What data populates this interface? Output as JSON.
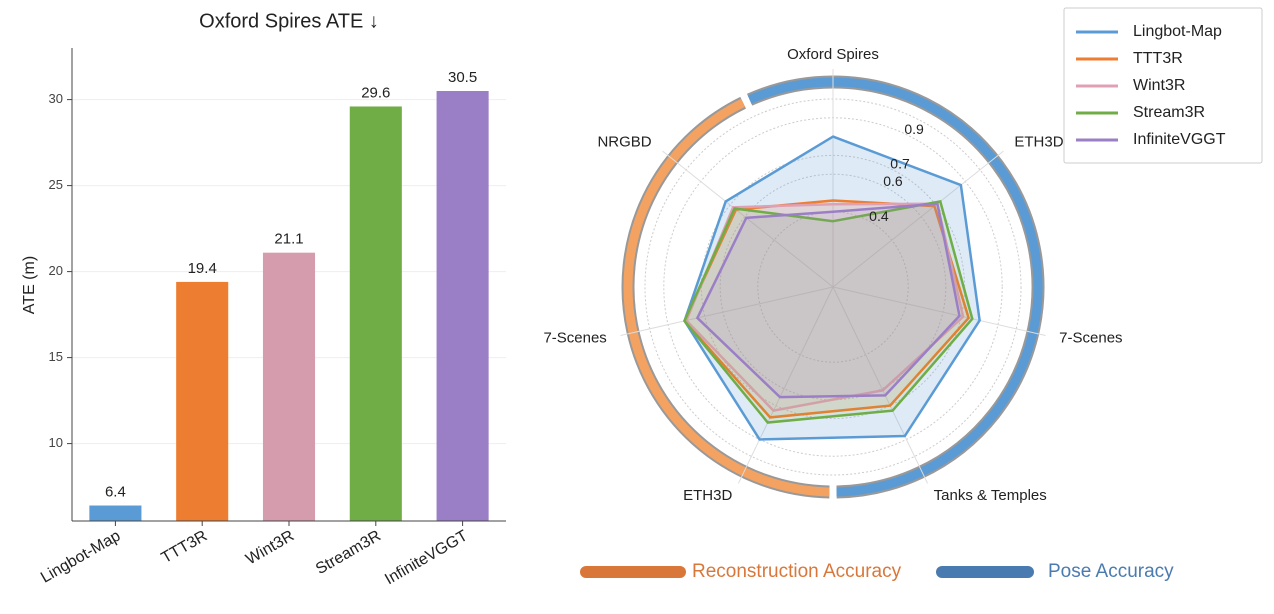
{
  "chart_data": [
    {
      "type": "bar",
      "title": "Oxford Spires ATE ↓",
      "ylabel": "ATE (m)",
      "categories": [
        "Lingbot-Map",
        "TTT3R",
        "Wint3R",
        "Stream3R",
        "InfiniteVGGT"
      ],
      "values": [
        6.4,
        19.4,
        21.1,
        29.6,
        30.5
      ],
      "colors": [
        "#5b9bd5",
        "#ed7d31",
        "#d49cad",
        "#70ad47",
        "#9b7fc6"
      ],
      "ylim": [
        5.5,
        33
      ],
      "yticks": [
        10,
        15,
        20,
        25,
        30
      ],
      "grid": true
    },
    {
      "type": "radar",
      "categories": [
        "Oxford Spires",
        "ETH3D",
        "7-Scenes",
        "Tanks & Temples",
        "ETH3D",
        "7-Scenes",
        "NRGBD"
      ],
      "series": [
        {
          "name": "Lingbot-Map",
          "color": "#5b9bd5",
          "values": [
            0.8,
            0.87,
            0.8,
            0.88,
            0.9,
            0.81,
            0.73
          ]
        },
        {
          "name": "TTT3R",
          "color": "#ed7d31",
          "values": [
            0.46,
            0.69,
            0.74,
            0.7,
            0.77,
            0.81,
            0.66
          ]
        },
        {
          "name": "Wint3R",
          "color": "#e0a0b4",
          "values": [
            0.44,
            0.71,
            0.71,
            0.61,
            0.73,
            0.8,
            0.68
          ]
        },
        {
          "name": "Stream3R",
          "color": "#70ad47",
          "values": [
            0.35,
            0.73,
            0.76,
            0.73,
            0.8,
            0.81,
            0.67
          ]
        },
        {
          "name": "InfiniteVGGT",
          "color": "#9b7fc6",
          "values": [
            0.4,
            0.71,
            0.69,
            0.64,
            0.65,
            0.74,
            0.59
          ]
        }
      ],
      "rlim": [
        0,
        1
      ],
      "rticks": [
        0.4,
        0.6,
        0.7,
        0.9
      ],
      "legend": "upper right",
      "groups": [
        {
          "name": "Reconstruction Accuracy",
          "color": "#d9773a"
        },
        {
          "name": "Pose Accuracy",
          "color": "#4a7bb0"
        }
      ]
    }
  ]
}
